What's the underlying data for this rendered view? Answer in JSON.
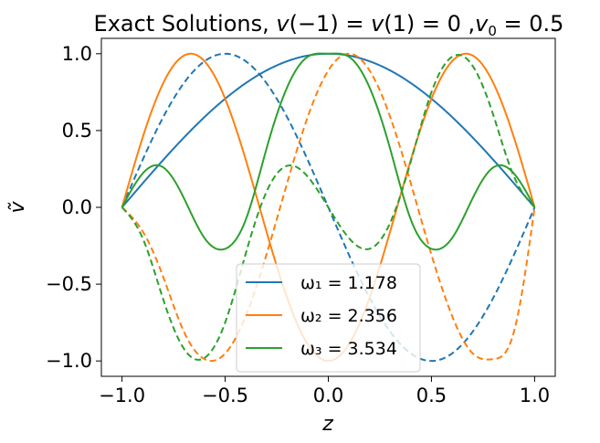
{
  "chart_data": {
    "type": "line",
    "title": "Exact Solutions, v(−1) = v(1) = 0 ,v₀ = 0.5",
    "xlabel": "z",
    "ylabel": "ṽ",
    "xlim": [
      -1.1,
      1.1
    ],
    "ylim": [
      -1.1,
      1.1
    ],
    "xticks": [
      "−1.0",
      "−0.5",
      "0.0",
      "0.5",
      "1.0"
    ],
    "xtick_values": [
      -1.0,
      -0.5,
      0.0,
      0.5,
      1.0
    ],
    "yticks": [
      "−1.0",
      "−0.5",
      "0.0",
      "0.5",
      "1.0"
    ],
    "ytick_values": [
      -1.0,
      -0.5,
      0.0,
      0.5,
      1.0
    ],
    "grid": false,
    "legend_position": "lower-center",
    "series": [
      {
        "name": "ω₁ = 1.178",
        "color": "#1f77b4",
        "style": "solid",
        "x": [
          -1.0,
          -0.9,
          -0.8,
          -0.7,
          -0.6,
          -0.5,
          -0.4,
          -0.3,
          -0.2,
          -0.1,
          0.0,
          0.1,
          0.2,
          0.3,
          0.4,
          0.5,
          0.6,
          0.7,
          0.8,
          0.9,
          1.0
        ],
        "y": [
          0.0,
          0.156,
          0.309,
          0.454,
          0.588,
          0.707,
          0.809,
          0.891,
          0.951,
          0.988,
          1.0,
          0.988,
          0.951,
          0.891,
          0.809,
          0.707,
          0.588,
          0.454,
          0.309,
          0.156,
          0.0
        ]
      },
      {
        "name": "",
        "color": "#1f77b4",
        "style": "dashed",
        "x": [
          -1.0,
          -0.9,
          -0.8,
          -0.7,
          -0.6,
          -0.5,
          -0.4,
          -0.3,
          -0.2,
          -0.1,
          0.0,
          0.1,
          0.2,
          0.3,
          0.4,
          0.5,
          0.6,
          0.7,
          0.8,
          0.9,
          1.0
        ],
        "y": [
          0.0,
          0.309,
          0.588,
          0.809,
          0.951,
          1.0,
          0.951,
          0.809,
          0.588,
          0.309,
          0.0,
          -0.309,
          -0.588,
          -0.809,
          -0.951,
          -1.0,
          -0.951,
          -0.809,
          -0.588,
          -0.309,
          0.0
        ]
      },
      {
        "name": "ω₂ = 2.356",
        "color": "#ff7f0e",
        "style": "solid",
        "x": [
          -1.0,
          -0.9,
          -0.8,
          -0.7,
          -0.6,
          -0.5,
          -0.4,
          -0.3,
          -0.2,
          -0.1,
          0.0,
          0.1,
          0.2,
          0.3,
          0.4,
          0.5,
          0.6,
          0.7,
          0.8,
          0.9,
          1.0
        ],
        "y": [
          0.0,
          0.454,
          0.809,
          0.988,
          0.951,
          0.707,
          0.309,
          -0.156,
          -0.588,
          -0.891,
          -1.0,
          -0.891,
          -0.588,
          -0.156,
          0.309,
          0.707,
          0.951,
          0.988,
          0.809,
          0.454,
          0.0
        ]
      },
      {
        "name": "",
        "color": "#ff7f0e",
        "style": "dashed",
        "x": [
          -1.0,
          -0.9,
          -0.8,
          -0.7,
          -0.6,
          -0.5,
          -0.4,
          -0.3,
          -0.2,
          -0.1,
          0.0,
          0.1,
          0.2,
          0.3,
          0.4,
          0.5,
          0.6,
          0.7,
          0.8,
          0.9,
          1.0
        ],
        "y": [
          0.0,
          -0.156,
          -0.454,
          -0.809,
          -0.988,
          -0.951,
          -0.707,
          -0.309,
          0.156,
          0.588,
          0.891,
          1.0,
          0.891,
          0.588,
          0.156,
          -0.309,
          -0.707,
          -0.951,
          -0.988,
          -0.809,
          0.0
        ]
      },
      {
        "name": "ω₃ = 3.534",
        "color": "#2ca02c",
        "style": "solid",
        "x": [
          -1.0,
          -0.9,
          -0.8,
          -0.7,
          -0.6,
          -0.5,
          -0.4,
          -0.3,
          -0.2,
          -0.1,
          0.0,
          0.1,
          0.2,
          0.3,
          0.4,
          0.5,
          0.6,
          0.7,
          0.8,
          0.9,
          1.0
        ],
        "y": [
          0.0,
          0.22,
          0.26,
          0.06,
          -0.2,
          -0.27,
          -0.08,
          0.38,
          0.78,
          0.98,
          1.0,
          0.98,
          0.78,
          0.38,
          -0.08,
          -0.27,
          -0.2,
          0.06,
          0.26,
          0.22,
          0.0
        ]
      },
      {
        "name": "",
        "color": "#2ca02c",
        "style": "dashed",
        "x": [
          -1.0,
          -0.9,
          -0.8,
          -0.7,
          -0.6,
          -0.5,
          -0.4,
          -0.3,
          -0.2,
          -0.1,
          0.0,
          0.1,
          0.2,
          0.3,
          0.4,
          0.5,
          0.6,
          0.7,
          0.8,
          0.9,
          1.0
        ],
        "y": [
          0.0,
          -0.2,
          -0.6,
          -0.92,
          -0.98,
          -0.75,
          -0.3,
          0.1,
          0.27,
          0.2,
          0.0,
          -0.2,
          -0.27,
          -0.1,
          0.3,
          0.75,
          0.98,
          0.92,
          0.6,
          0.2,
          0.0
        ]
      }
    ]
  }
}
